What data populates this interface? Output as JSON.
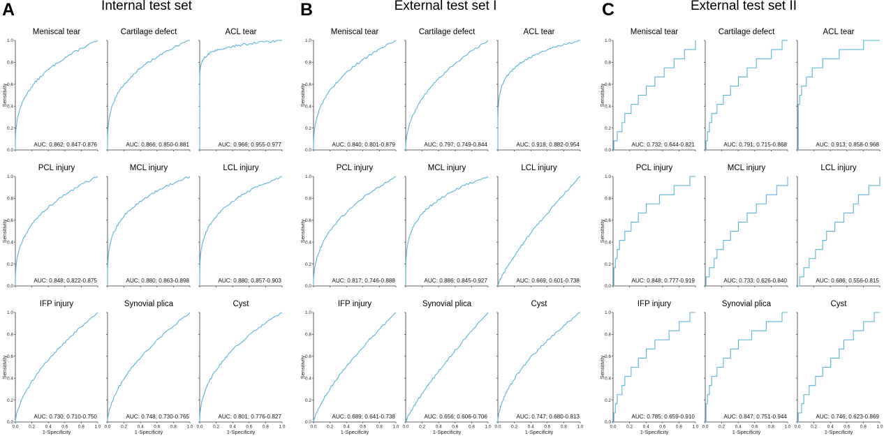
{
  "panels": [
    {
      "letter": "A",
      "title": "Internal test set"
    },
    {
      "letter": "B",
      "title": "External test set I"
    },
    {
      "letter": "C",
      "title": "External test set II"
    }
  ],
  "axes": {
    "xlabel": "1-Specificity",
    "ylabel": "Sensitivity",
    "ticks": [
      "0.0",
      "0.2",
      "0.4",
      "0.6",
      "0.8",
      "1.0"
    ]
  },
  "chart_data": [
    {
      "panel": "A",
      "type": "line",
      "title": "Meniscal tear",
      "auc": "AUC: 0.862; 0.847-0.876",
      "xlim": [
        0,
        1
      ],
      "ylim": [
        0,
        1
      ],
      "shape": 0.34,
      "stepped": false
    },
    {
      "panel": "A",
      "type": "line",
      "title": "Cartilage defect",
      "auc": "AUC: 0.866; 0.850-0.881",
      "xlim": [
        0,
        1
      ],
      "ylim": [
        0,
        1
      ],
      "shape": 0.32,
      "stepped": false
    },
    {
      "panel": "A",
      "type": "line",
      "title": "ACL tear",
      "auc": "AUC: 0.966; 0.955-0.977",
      "xlim": [
        0,
        1
      ],
      "ylim": [
        0,
        1
      ],
      "shape": 0.06,
      "stepped": false
    },
    {
      "panel": "A",
      "type": "line",
      "title": "PCL injury",
      "auc": "AUC: 0.848; 0.822-0.875",
      "xlim": [
        0,
        1
      ],
      "ylim": [
        0,
        1
      ],
      "shape": 0.36,
      "stepped": false
    },
    {
      "panel": "A",
      "type": "line",
      "title": "MCL injury",
      "auc": "AUC: 0.880; 0.863-0.898",
      "xlim": [
        0,
        1
      ],
      "ylim": [
        0,
        1
      ],
      "shape": 0.28,
      "stepped": false
    },
    {
      "panel": "A",
      "type": "line",
      "title": "LCL injury",
      "auc": "AUC: 0.880; 0.857-0.903",
      "xlim": [
        0,
        1
      ],
      "ylim": [
        0,
        1
      ],
      "shape": 0.28,
      "stepped": false
    },
    {
      "panel": "A",
      "type": "line",
      "title": "IFP injury",
      "auc": "AUC: 0.730; 0.710-0.750",
      "xlim": [
        0,
        1
      ],
      "ylim": [
        0,
        1
      ],
      "shape": 0.62,
      "stepped": false
    },
    {
      "panel": "A",
      "type": "line",
      "title": "Synovial plica",
      "auc": "AUC: 0.748; 0.730-0.765",
      "xlim": [
        0,
        1
      ],
      "ylim": [
        0,
        1
      ],
      "shape": 0.58,
      "stepped": false
    },
    {
      "panel": "A",
      "type": "line",
      "title": "Cyst",
      "auc": "AUC: 0.801; 0.776-0.827",
      "xlim": [
        0,
        1
      ],
      "ylim": [
        0,
        1
      ],
      "shape": 0.46,
      "stepped": false
    },
    {
      "panel": "B",
      "type": "line",
      "title": "Meniscal tear",
      "auc": "AUC: 0.840; 0.801-0.879",
      "xlim": [
        0,
        1
      ],
      "ylim": [
        0,
        1
      ],
      "shape": 0.38,
      "stepped": false
    },
    {
      "panel": "B",
      "type": "line",
      "title": "Cartilage defect",
      "auc": "AUC: 0.797; 0.749-0.844",
      "xlim": [
        0,
        1
      ],
      "ylim": [
        0,
        1
      ],
      "shape": 0.47,
      "stepped": false
    },
    {
      "panel": "B",
      "type": "line",
      "title": "ACL tear",
      "auc": "AUC: 0.918; 0.882-0.954",
      "xlim": [
        0,
        1
      ],
      "ylim": [
        0,
        1
      ],
      "shape": 0.18,
      "stepped": false
    },
    {
      "panel": "B",
      "type": "line",
      "title": "PCL injury",
      "auc": "AUC: 0.817; 0.746-0.888",
      "xlim": [
        0,
        1
      ],
      "ylim": [
        0,
        1
      ],
      "shape": 0.43,
      "stepped": false
    },
    {
      "panel": "B",
      "type": "line",
      "title": "MCL injury",
      "auc": "AUC: 0.886; 0.845-0.927",
      "xlim": [
        0,
        1
      ],
      "ylim": [
        0,
        1
      ],
      "shape": 0.26,
      "stepped": false
    },
    {
      "panel": "B",
      "type": "line",
      "title": "LCL injury",
      "auc": "AUC: 0.669; 0.601-0.738",
      "xlim": [
        0,
        1
      ],
      "ylim": [
        0,
        1
      ],
      "shape": 0.8,
      "stepped": false
    },
    {
      "panel": "B",
      "type": "line",
      "title": "IFP injury",
      "auc": "AUC: 0.689; 0.641-0.738",
      "xlim": [
        0,
        1
      ],
      "ylim": [
        0,
        1
      ],
      "shape": 0.74,
      "stepped": false
    },
    {
      "panel": "B",
      "type": "line",
      "title": "Synovial plica",
      "auc": "AUC: 0.656; 0.606-0.706",
      "xlim": [
        0,
        1
      ],
      "ylim": [
        0,
        1
      ],
      "shape": 0.84,
      "stepped": false
    },
    {
      "panel": "B",
      "type": "line",
      "title": "Cyst",
      "auc": "AUC: 0.747; 0.680-0.813",
      "xlim": [
        0,
        1
      ],
      "ylim": [
        0,
        1
      ],
      "shape": 0.58,
      "stepped": false
    },
    {
      "panel": "C",
      "type": "line",
      "title": "Meniscal tear",
      "auc": "AUC: 0.732; 0.644-0.821",
      "xlim": [
        0,
        1
      ],
      "ylim": [
        0,
        1
      ],
      "shape": 0.63,
      "stepped": true
    },
    {
      "panel": "C",
      "type": "line",
      "title": "Cartilage defect",
      "auc": "AUC: 0.791; 0.715-0.868",
      "xlim": [
        0,
        1
      ],
      "ylim": [
        0,
        1
      ],
      "shape": 0.48,
      "stepped": true
    },
    {
      "panel": "C",
      "type": "line",
      "title": "ACL tear",
      "auc": "AUC: 0.913; 0.858-0.968",
      "xlim": [
        0,
        1
      ],
      "ylim": [
        0,
        1
      ],
      "shape": 0.19,
      "stepped": true
    },
    {
      "panel": "C",
      "type": "line",
      "title": "PCL injury",
      "auc": "AUC: 0.848; 0.777-0.919",
      "xlim": [
        0,
        1
      ],
      "ylim": [
        0,
        1
      ],
      "shape": 0.36,
      "stepped": true
    },
    {
      "panel": "C",
      "type": "line",
      "title": "MCL injury",
      "auc": "AUC: 0.733; 0.626-0.840",
      "xlim": [
        0,
        1
      ],
      "ylim": [
        0,
        1
      ],
      "shape": 0.63,
      "stepped": true
    },
    {
      "panel": "C",
      "type": "line",
      "title": "LCL injury",
      "auc": "AUC: 0.686; 0.556-0.815",
      "xlim": [
        0,
        1
      ],
      "ylim": [
        0,
        1
      ],
      "shape": 0.75,
      "stepped": true
    },
    {
      "panel": "C",
      "type": "line",
      "title": "IFP injury",
      "auc": "AUC: 0.785; 0.659-0.910",
      "xlim": [
        0,
        1
      ],
      "ylim": [
        0,
        1
      ],
      "shape": 0.5,
      "stepped": true
    },
    {
      "panel": "C",
      "type": "line",
      "title": "Synovial plica",
      "auc": "AUC: 0.847; 0.751-0.944",
      "xlim": [
        0,
        1
      ],
      "ylim": [
        0,
        1
      ],
      "shape": 0.37,
      "stepped": true
    },
    {
      "panel": "C",
      "type": "line",
      "title": "Cyst",
      "auc": "AUC: 0.746; 0.623-0.869",
      "xlim": [
        0,
        1
      ],
      "ylim": [
        0,
        1
      ],
      "shape": 0.6,
      "stepped": true
    }
  ]
}
